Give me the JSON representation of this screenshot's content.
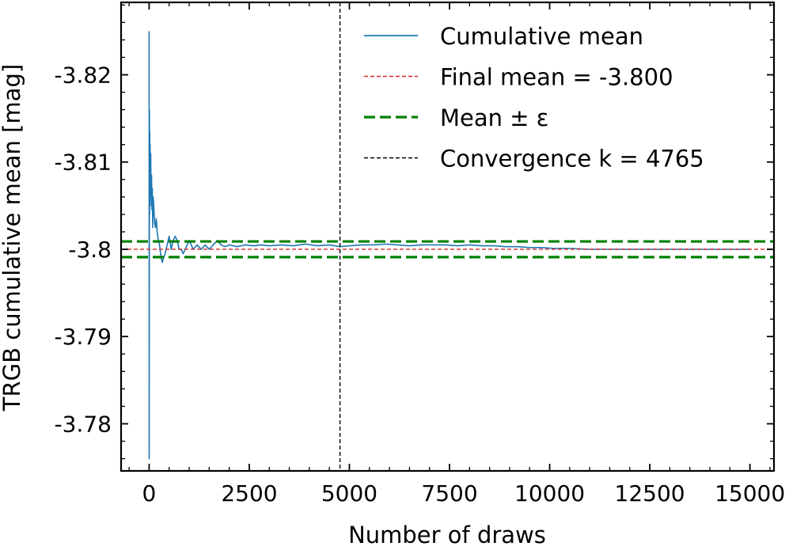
{
  "chart_data": {
    "type": "line",
    "xlabel": "Number of draws",
    "ylabel": "TRGB cumulative mean [mag]",
    "xlim": [
      -700,
      15600
    ],
    "ylim": [
      -3.7746,
      -3.8283
    ],
    "y_axis_inverted": true,
    "xticks": [
      0,
      2500,
      5000,
      7500,
      10000,
      12500,
      15000
    ],
    "xtick_labels": [
      "0",
      "2500",
      "5000",
      "7500",
      "10000",
      "12500",
      "15000"
    ],
    "yticks": [
      -3.82,
      -3.81,
      -3.8,
      -3.79,
      -3.78
    ],
    "ytick_labels": [
      "-3.82",
      "-3.81",
      "-3.8",
      "-3.79",
      "-3.78"
    ],
    "grid": false,
    "legend_position": "top-right",
    "series": [
      {
        "name": "Cumulative mean",
        "color": "#1f77b4",
        "style": "solid",
        "x": [
          0,
          2,
          5,
          8,
          12,
          16,
          20,
          25,
          30,
          40,
          50,
          60,
          70,
          80,
          90,
          100,
          110,
          120,
          140,
          160,
          180,
          200,
          230,
          260,
          300,
          330,
          360,
          400,
          450,
          500,
          550,
          600,
          650,
          700,
          750,
          800,
          850,
          900,
          950,
          1000,
          1100,
          1200,
          1300,
          1400,
          1500,
          1600,
          1700,
          1800,
          1900,
          2000,
          2200,
          2400,
          2600,
          2800,
          3000,
          3300,
          3600,
          3900,
          4200,
          4500,
          4765,
          5000,
          5300,
          5600,
          5900,
          6200,
          6500,
          6800,
          7100,
          7400,
          7700,
          8000,
          8300,
          8600,
          8900,
          9200,
          9500,
          9800,
          10100,
          10500,
          11000,
          11500,
          12000,
          12500,
          13000,
          13500,
          14000,
          14500,
          15000
        ],
        "y": [
          -3.825,
          -3.776,
          -3.797,
          -3.816,
          -3.804,
          -3.8135,
          -3.807,
          -3.812,
          -3.805,
          -3.811,
          -3.806,
          -3.8085,
          -3.8045,
          -3.807,
          -3.8025,
          -3.806,
          -3.8055,
          -3.8045,
          -3.803,
          -3.8025,
          -3.8035,
          -3.802,
          -3.801,
          -3.8005,
          -3.799,
          -3.7985,
          -3.799,
          -3.7995,
          -3.8005,
          -3.8015,
          -3.8,
          -3.801,
          -3.8015,
          -3.801,
          -3.8,
          -3.8,
          -3.7995,
          -3.8,
          -3.8005,
          -3.801,
          -3.8,
          -3.8005,
          -3.8,
          -3.8005,
          -3.8,
          -3.8005,
          -3.801,
          -3.8005,
          -3.8003,
          -3.8005,
          -3.8003,
          -3.8005,
          -3.8004,
          -3.8005,
          -3.8004,
          -3.8005,
          -3.8004,
          -3.8006,
          -3.8004,
          -3.8005,
          -3.8003,
          -3.8004,
          -3.8005,
          -3.8005,
          -3.8006,
          -3.8005,
          -3.8004,
          -3.8005,
          -3.8005,
          -3.8005,
          -3.8004,
          -3.8005,
          -3.8004,
          -3.8004,
          -3.8003,
          -3.8003,
          -3.8002,
          -3.8002,
          -3.8001,
          -3.8001,
          -3.8,
          -3.8,
          -3.8,
          -3.8,
          -3.8,
          -3.8,
          -3.8,
          -3.8,
          -3.8
        ]
      }
    ],
    "reference_lines": [
      {
        "name": "Final mean = -3.800",
        "orientation": "horizontal",
        "value": -3.8,
        "color": "#d62728",
        "style": "dotted"
      },
      {
        "name": "Mean ± ε",
        "orientation": "horizontal",
        "values": [
          -3.8009,
          -3.7991
        ],
        "color": "#008000",
        "style": "dashed"
      },
      {
        "name": "Convergence k = 4765",
        "orientation": "vertical",
        "value": 4765,
        "color": "#000000",
        "style": "dotted"
      }
    ],
    "legend": [
      {
        "label": "Cumulative mean",
        "color": "#1f77b4",
        "style": "solid"
      },
      {
        "label": "Final mean = -3.800",
        "color": "#d62728",
        "style": "dotted"
      },
      {
        "label": "Mean ± ε",
        "color": "#008000",
        "style": "dashed"
      },
      {
        "label": "Convergence k = 4765",
        "color": "#000000",
        "style": "dotted"
      }
    ]
  }
}
